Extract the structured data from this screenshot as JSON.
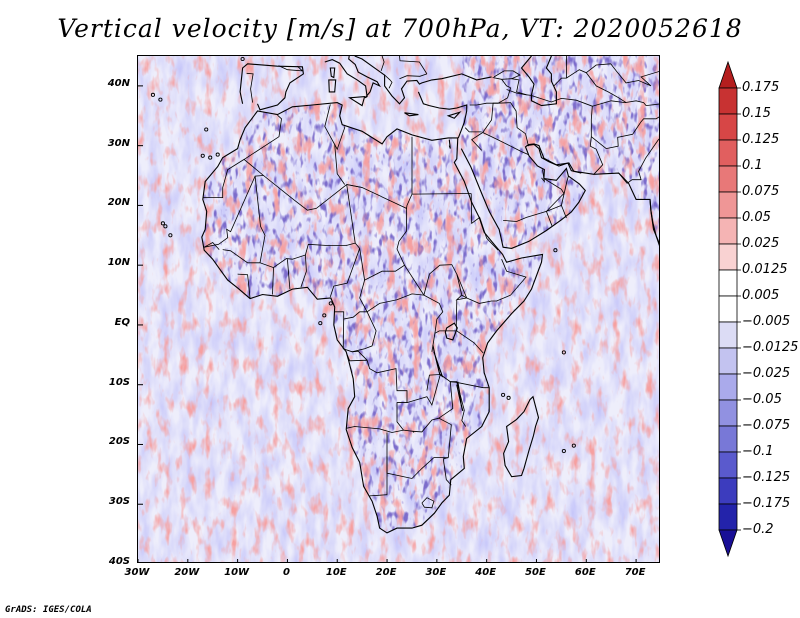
{
  "title": "Vertical velocity [m/s] at 700hPa, VT: 2020052618",
  "credit": "GrADS: IGES/COLA",
  "map": {
    "lat_range": [
      -40,
      45
    ],
    "lon_range": [
      -30,
      75
    ],
    "lat_ticks": [
      "40N",
      "30N",
      "20N",
      "10N",
      "EQ",
      "10S",
      "20S",
      "30S",
      "40S"
    ],
    "lon_ticks": [
      "30W",
      "20W",
      "10W",
      "0",
      "10E",
      "20E",
      "30E",
      "40E",
      "50E",
      "60E",
      "70E"
    ]
  },
  "legend": {
    "values": [
      "0.175",
      "0.15",
      "0.125",
      "0.1",
      "0.075",
      "0.05",
      "0.025",
      "0.0125",
      "0.005",
      "−0.005",
      "−0.0125",
      "−0.025",
      "−0.05",
      "−0.075",
      "−0.1",
      "−0.125",
      "−0.175",
      "−0.2"
    ],
    "colors": [
      "#b41e1e",
      "#c83232",
      "#d74646",
      "#e15f5f",
      "#e87878",
      "#ef9696",
      "#f5b4b4",
      "#f9d2d2",
      "#ffffff",
      "#ffffff",
      "#dcdcf5",
      "#c3c3f0",
      "#aaaaeb",
      "#9191e1",
      "#7878d7",
      "#5a5acd",
      "#3c3cbe",
      "#2323aa",
      "#190f96"
    ]
  }
}
